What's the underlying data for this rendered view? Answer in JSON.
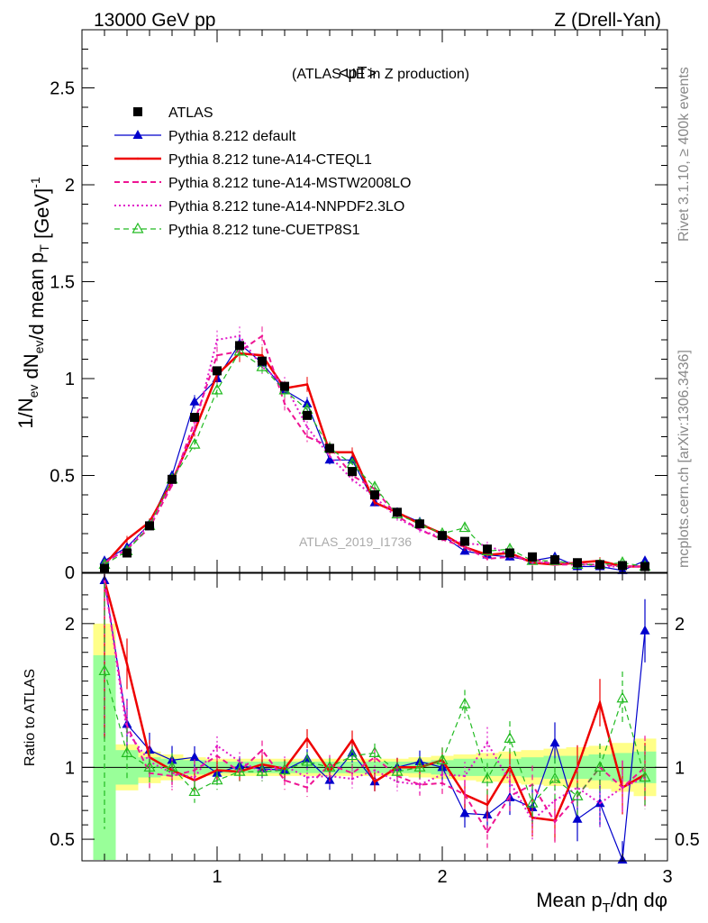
{
  "header": {
    "left": "13000 GeV pp",
    "right": "Z (Drell-Yan)"
  },
  "side_labels": {
    "rivet": "Rivet 3.1.10, ≥ 400k events",
    "mcplots": "mcplots.cern.ch [arXiv:1306.3436]"
  },
  "colors": {
    "atlas": "#000000",
    "default": "#0000cc",
    "a14_cteql1": "#ee0000",
    "a14_mstw": "#ee1493",
    "a14_nnpdf": "#e018c8",
    "cuetp8s1": "#22bb22",
    "band_inner": "#99ff99",
    "band_outer": "#ffff88"
  },
  "chart_data": [
    {
      "type": "line",
      "panel": "main",
      "title": "<pT>",
      "title_sub": "(ATLAS UE in Z production)",
      "watermark": "ATLAS_2019_I1736",
      "ylabel": "1/N_ev dN_ev/d mean p_T [GeV]^-1",
      "xlim": [
        0.4,
        3.0
      ],
      "ylim": [
        0,
        2.8
      ],
      "yticks": [
        0,
        0.5,
        1,
        1.5,
        2,
        2.5
      ],
      "ytick_labels": [
        "0",
        "0.5",
        "1",
        "1.5",
        "2",
        "2.5"
      ],
      "x": [
        0.5,
        0.6,
        0.7,
        0.8,
        0.9,
        1.0,
        1.1,
        1.2,
        1.3,
        1.4,
        1.5,
        1.6,
        1.7,
        1.8,
        1.9,
        2.0,
        2.1,
        2.2,
        2.3,
        2.4,
        2.5,
        2.6,
        2.7,
        2.8,
        2.9
      ],
      "series": [
        {
          "name": "ATLAS",
          "key": "atlas",
          "style": "marker",
          "values": [
            0.02,
            0.1,
            0.24,
            0.48,
            0.8,
            1.04,
            1.17,
            1.09,
            0.96,
            0.81,
            0.64,
            0.52,
            0.4,
            0.31,
            0.25,
            0.19,
            0.16,
            0.12,
            0.1,
            0.08,
            0.065,
            0.05,
            0.04,
            0.035,
            0.03
          ]
        },
        {
          "name": "Pythia 8.212 default",
          "key": "default",
          "style": "solid-triangle",
          "values": [
            0.06,
            0.13,
            0.25,
            0.5,
            0.88,
            1.0,
            1.18,
            1.08,
            0.94,
            0.87,
            0.58,
            0.58,
            0.36,
            0.31,
            0.26,
            0.19,
            0.11,
            0.09,
            0.08,
            0.06,
            0.08,
            0.03,
            0.03,
            0.01,
            0.06
          ]
        },
        {
          "name": "Pythia 8.212 tune-A14-CTEQL1",
          "key": "a14_cteql1",
          "style": "thick",
          "values": [
            0.04,
            0.17,
            0.26,
            0.47,
            0.73,
            1.02,
            1.13,
            1.12,
            0.95,
            0.97,
            0.62,
            0.62,
            0.36,
            0.31,
            0.25,
            0.2,
            0.13,
            0.09,
            0.1,
            0.05,
            0.04,
            0.05,
            0.06,
            0.03,
            0.03
          ]
        },
        {
          "name": "Pythia 8.212 tune-A14-MSTW2008LO",
          "key": "a14_mstw",
          "style": "dashed",
          "values": [
            0.05,
            0.12,
            0.23,
            0.45,
            0.78,
            1.12,
            1.14,
            1.22,
            0.87,
            0.7,
            0.65,
            0.5,
            0.43,
            0.29,
            0.22,
            0.17,
            0.13,
            0.07,
            0.08,
            0.07,
            0.04,
            0.04,
            0.04,
            0.03,
            0.03
          ]
        },
        {
          "name": "Pythia 8.212 tune-A14-NNPDF2.3LO",
          "key": "a14_nnpdf",
          "style": "dotted",
          "values": [
            0.05,
            0.12,
            0.25,
            0.46,
            0.74,
            1.2,
            1.22,
            1.06,
            0.97,
            0.75,
            0.6,
            0.48,
            0.39,
            0.28,
            0.22,
            0.18,
            0.15,
            0.14,
            0.09,
            0.05,
            0.05,
            0.05,
            0.03,
            0.03,
            0.03
          ]
        },
        {
          "name": "Pythia 8.212 tune-CUETP8S1",
          "key": "cuetp8s1",
          "style": "dashed-open-triangle",
          "values": [
            0.04,
            0.11,
            0.24,
            0.48,
            0.66,
            0.94,
            1.14,
            1.06,
            0.94,
            0.84,
            0.64,
            0.56,
            0.44,
            0.3,
            0.25,
            0.2,
            0.23,
            0.11,
            0.12,
            0.06,
            0.06,
            0.04,
            0.04,
            0.05,
            0.03
          ]
        }
      ]
    },
    {
      "type": "line",
      "panel": "ratio",
      "ylabel": "Ratio to ATLAS",
      "xlabel": "Mean p_T/dη dφ",
      "xlim": [
        0.4,
        3.0
      ],
      "ylim": [
        0.35,
        2.35
      ],
      "xticks": [
        1,
        2,
        3
      ],
      "xtick_labels": [
        "1",
        "2",
        "3"
      ],
      "yticks": [
        0.5,
        1,
        2
      ],
      "ytick_labels": [
        "0.5",
        "1",
        "2"
      ],
      "x": [
        0.5,
        0.6,
        0.7,
        0.8,
        0.9,
        1.0,
        1.1,
        1.2,
        1.3,
        1.4,
        1.5,
        1.6,
        1.7,
        1.8,
        1.9,
        2.0,
        2.1,
        2.2,
        2.3,
        2.4,
        2.5,
        2.6,
        2.7,
        2.8,
        2.9
      ],
      "bands": {
        "inner_halfwidth": [
          0.78,
          0.12,
          0.07,
          0.06,
          0.05,
          0.04,
          0.04,
          0.04,
          0.04,
          0.04,
          0.04,
          0.04,
          0.04,
          0.04,
          0.04,
          0.05,
          0.06,
          0.06,
          0.06,
          0.07,
          0.08,
          0.08,
          0.09,
          0.1,
          0.11
        ],
        "outer_halfwidth": [
          1.0,
          0.16,
          0.11,
          0.09,
          0.07,
          0.06,
          0.06,
          0.06,
          0.06,
          0.06,
          0.06,
          0.06,
          0.06,
          0.06,
          0.07,
          0.08,
          0.09,
          0.1,
          0.11,
          0.12,
          0.13,
          0.14,
          0.15,
          0.17,
          0.2
        ]
      },
      "series": [
        {
          "name": "Pythia 8.212 default",
          "key": "default",
          "values": [
            2.3,
            1.3,
            1.12,
            1.05,
            1.07,
            0.96,
            1.01,
            0.99,
            0.98,
            1.06,
            0.91,
            1.1,
            0.9,
            1.0,
            1.04,
            1.0,
            0.68,
            0.67,
            0.79,
            0.72,
            1.17,
            0.64,
            0.75,
            0.3,
            1.95
          ]
        },
        {
          "name": "Pythia 8.212 tune-A14-CTEQL1",
          "key": "a14_cteql1",
          "values": [
            2.3,
            1.72,
            1.07,
            0.98,
            0.91,
            0.98,
            0.97,
            1.02,
            0.99,
            1.2,
            0.97,
            1.19,
            0.9,
            1.0,
            1.0,
            1.05,
            0.81,
            0.74,
            1.0,
            0.65,
            0.63,
            1.0,
            1.45,
            0.86,
            0.95
          ]
        },
        {
          "name": "Pythia 8.212 tune-A14-MSTW2008LO",
          "key": "a14_mstw",
          "values": [
            2.3,
            1.29,
            0.96,
            0.94,
            0.98,
            1.08,
            0.97,
            1.12,
            0.91,
            0.86,
            1.02,
            0.96,
            1.07,
            0.94,
            0.88,
            0.89,
            0.81,
            0.55,
            0.8,
            0.88,
            0.62,
            0.8,
            1.0,
            0.86,
            1.0
          ]
        },
        {
          "name": "Pythia 8.212 tune-A14-NNPDF2.3LO",
          "key": "a14_nnpdf",
          "values": [
            2.3,
            1.25,
            1.04,
            0.96,
            0.93,
            1.15,
            1.04,
            0.97,
            1.01,
            0.93,
            0.94,
            0.92,
            0.98,
            0.9,
            0.88,
            0.95,
            0.94,
            1.17,
            0.9,
            0.63,
            0.77,
            0.86,
            0.75,
            0.86,
            0.93
          ]
        },
        {
          "name": "Pythia 8.212 tune-CUETP8S1",
          "key": "cuetp8s1",
          "values": [
            1.67,
            1.1,
            1.0,
            1.0,
            0.83,
            0.91,
            0.97,
            0.97,
            0.98,
            1.04,
            1.0,
            1.08,
            1.1,
            0.97,
            1.0,
            1.05,
            1.44,
            0.92,
            1.2,
            0.75,
            0.92,
            0.8,
            1.0,
            1.48,
            0.93
          ]
        }
      ]
    }
  ]
}
